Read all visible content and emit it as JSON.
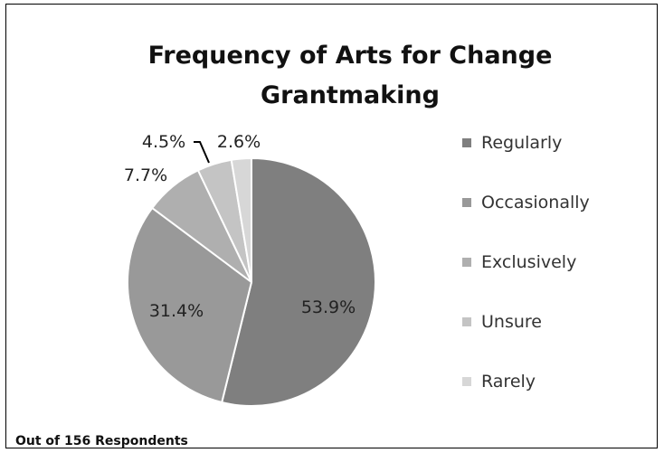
{
  "chart_data": {
    "type": "pie",
    "title_lines": [
      "Frequency of Arts for Change",
      "Grantmaking"
    ],
    "slices": [
      {
        "name": "Regularly",
        "value": 53.9,
        "label": "53.9%",
        "color": "#7f7f7f"
      },
      {
        "name": "Occasionally",
        "value": 31.4,
        "label": "31.4%",
        "color": "#999999"
      },
      {
        "name": "Exclusively",
        "value": 7.7,
        "label": "7.7%",
        "color": "#afafaf"
      },
      {
        "name": "Unsure",
        "value": 4.5,
        "label": "4.5%",
        "color": "#c4c4c4"
      },
      {
        "name": "Rarely",
        "value": 2.6,
        "label": "2.6%",
        "color": "#d7d7d7"
      }
    ],
    "legend_position": "right"
  },
  "footnote": "Out of 156 Respondents"
}
